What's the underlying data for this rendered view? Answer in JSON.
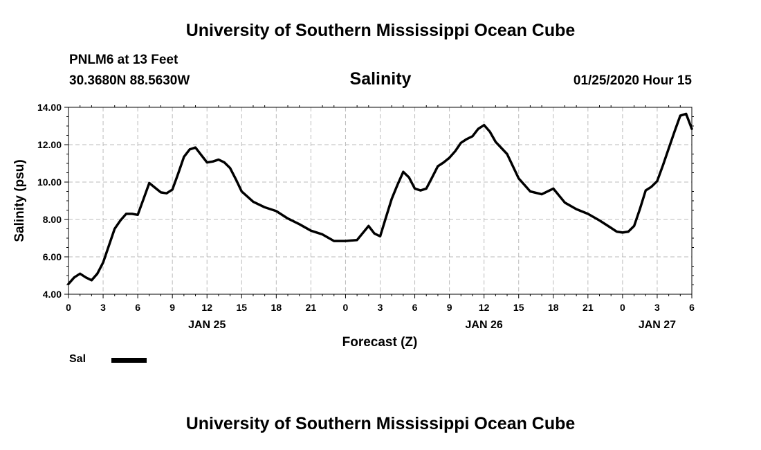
{
  "header": {
    "title": "University of Southern Mississippi Ocean Cube",
    "station": "PNLM6 at 13 Feet",
    "coordinates": "30.3680N 88.5630W",
    "chart_title": "Salinity",
    "datetime": "01/25/2020 Hour 15"
  },
  "footer": {
    "title": "University of Southern Mississippi Ocean Cube"
  },
  "legend": {
    "label": "Sal",
    "color": "#000000"
  },
  "chart_data": {
    "type": "line",
    "title": "Salinity",
    "xlabel": "Forecast (Z)",
    "ylabel": "Salinity (psu)",
    "ylim": [
      4,
      14
    ],
    "xlim": [
      0,
      54
    ],
    "grid": true,
    "legend_position": "bottom-left",
    "x_ticks": [
      "0",
      "3",
      "6",
      "9",
      "12",
      "15",
      "18",
      "21",
      "0",
      "3",
      "6",
      "9",
      "12",
      "15",
      "18",
      "21",
      "0",
      "3",
      "6"
    ],
    "y_ticks": [
      "4.00",
      "6.00",
      "8.00",
      "10.00",
      "12.00",
      "14.00"
    ],
    "date_labels": [
      {
        "label": "JAN 25",
        "at": 12
      },
      {
        "label": "JAN 26",
        "at": 36
      },
      {
        "label": "JAN 27",
        "at": 51
      }
    ],
    "series": [
      {
        "name": "Sal",
        "color": "#000000",
        "x": [
          0,
          0.5,
          1,
          1.5,
          2,
          2.5,
          3,
          3.5,
          4,
          4.5,
          5,
          5.5,
          6,
          6.5,
          7,
          7.5,
          8,
          8.5,
          9,
          9.5,
          10,
          10.5,
          11,
          11.5,
          12,
          12.5,
          13,
          13.5,
          14,
          14.5,
          15,
          16,
          17,
          18,
          19,
          20,
          21,
          22,
          23,
          24,
          25,
          26,
          26.5,
          27,
          27.5,
          28,
          28.5,
          29,
          29.5,
          30,
          30.5,
          31,
          31.5,
          32,
          32.5,
          33,
          33.5,
          34,
          34.5,
          35,
          35.5,
          36,
          36.5,
          37,
          38,
          39,
          40,
          41,
          42,
          43,
          44,
          45,
          46,
          47,
          47.5,
          48,
          48.5,
          49,
          49.5,
          50,
          50.5,
          51,
          51.5,
          52,
          52.5,
          53,
          53.5,
          54
        ],
        "values": [
          4.55,
          4.9,
          5.1,
          4.9,
          4.75,
          5.1,
          5.7,
          6.6,
          7.5,
          7.95,
          8.3,
          8.3,
          8.25,
          9.1,
          9.95,
          9.7,
          9.45,
          9.4,
          9.6,
          10.45,
          11.35,
          11.75,
          11.85,
          11.45,
          11.05,
          11.1,
          11.2,
          11.05,
          10.75,
          10.15,
          9.5,
          8.95,
          8.65,
          8.45,
          8.05,
          7.75,
          7.4,
          7.2,
          6.85,
          6.85,
          6.9,
          7.65,
          7.25,
          7.1,
          8.1,
          9.1,
          9.85,
          10.55,
          10.25,
          9.65,
          9.55,
          9.65,
          10.25,
          10.85,
          11.05,
          11.3,
          11.65,
          12.1,
          12.3,
          12.45,
          12.85,
          13.05,
          12.7,
          12.15,
          11.5,
          10.2,
          9.5,
          9.35,
          9.65,
          8.9,
          8.55,
          8.3,
          7.95,
          7.55,
          7.35,
          7.3,
          7.35,
          7.65,
          8.55,
          9.55,
          9.75,
          10.05,
          10.9,
          11.8,
          12.7,
          13.55,
          13.65,
          12.85
        ]
      }
    ]
  }
}
